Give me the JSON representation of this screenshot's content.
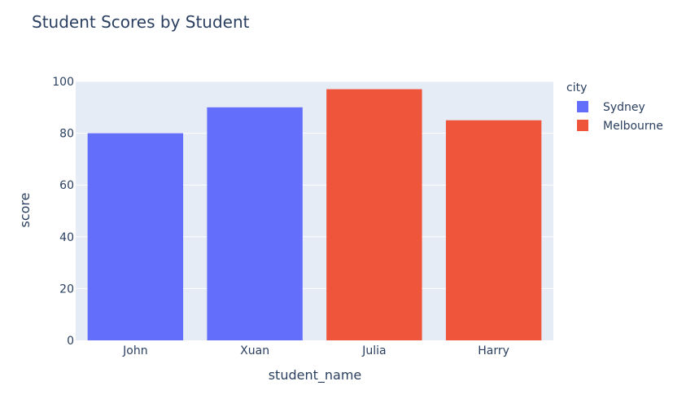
{
  "chart_data": {
    "type": "bar",
    "title": "Student Scores by Student",
    "xlabel": "student_name",
    "ylabel": "score",
    "categories": [
      "John",
      "Xuan",
      "Julia",
      "Harry"
    ],
    "series": [
      {
        "name": "Sydney",
        "color": "#636efa",
        "values": [
          80,
          90,
          null,
          null
        ]
      },
      {
        "name": "Melbourne",
        "color": "#ef553b",
        "values": [
          null,
          null,
          97,
          85
        ]
      }
    ],
    "ylim": [
      0,
      100
    ],
    "yticks": [
      0,
      20,
      40,
      60,
      80,
      100
    ],
    "grid": true,
    "legend": {
      "title": "city",
      "placement": "right"
    },
    "plot_bg": "#e5ecf6"
  }
}
